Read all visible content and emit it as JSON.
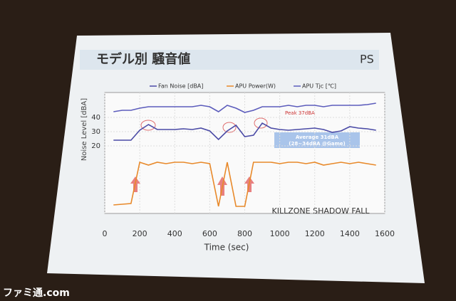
{
  "chart_data": {
    "type": "line",
    "title": "モデル別 騒音値",
    "x_label": "Time (sec)",
    "y_label": "Noise Level [dBA]",
    "x": [
      50,
      100,
      150,
      200,
      250,
      300,
      350,
      400,
      450,
      500,
      550,
      600,
      650,
      700,
      750,
      800,
      850,
      900,
      950,
      1000,
      1050,
      1100,
      1150,
      1200,
      1250,
      1300,
      1350,
      1400,
      1450,
      1500,
      1550
    ],
    "series": [
      {
        "name": "Fan Noise [dBA]",
        "color": "#4b4ba6",
        "values": [
          24,
          24,
          24,
          31,
          35,
          31.5,
          31.5,
          31.5,
          32,
          31.5,
          32.5,
          30.5,
          24.5,
          30.5,
          34.5,
          26.5,
          27.5,
          36,
          32.5,
          31.5,
          31,
          31.5,
          32,
          32.5,
          31.5,
          29.5,
          30.5,
          33.5,
          32.5,
          32,
          31
        ]
      },
      {
        "name": "APU Power(W)",
        "color": "#e8892a",
        "values": [
          -21.5,
          -21,
          -20.5,
          8.5,
          6.5,
          8.5,
          7.5,
          8.5,
          8.5,
          7.5,
          8.5,
          7.5,
          -22.5,
          8.5,
          -22.5,
          -22.5,
          8.5,
          8.5,
          8.5,
          7.5,
          8.5,
          8.5,
          7.5,
          8.5,
          6.5,
          7.5,
          8.5,
          7.5,
          8.5,
          7.5,
          6.5
        ]
      },
      {
        "name": "APU Tjc [℃]",
        "color": "#5c5cbc",
        "values": [
          44,
          45,
          45,
          46.5,
          47.5,
          47.5,
          47.5,
          47.5,
          47.5,
          47.5,
          48.5,
          47.5,
          44,
          48.5,
          46.5,
          43.5,
          45,
          47.5,
          47.5,
          47.5,
          48.5,
          47.5,
          48.5,
          48.5,
          47.5,
          48.5,
          48.5,
          48.5,
          48.5,
          49,
          50
        ]
      }
    ],
    "xlim": [
      0,
      1600
    ],
    "xticks": [
      0,
      200,
      400,
      600,
      800,
      1000,
      1200,
      1400,
      1600
    ],
    "ylim": [
      -27.5,
      57.5
    ],
    "yticks": [
      20,
      30,
      40
    ],
    "grid": true,
    "annotations": [
      "Peak 37dBA",
      "Average 31dBA",
      "(28~34dBA @Game)",
      "KILLZONE SHADOW FALL"
    ]
  },
  "watermark": "ファミ通.com"
}
